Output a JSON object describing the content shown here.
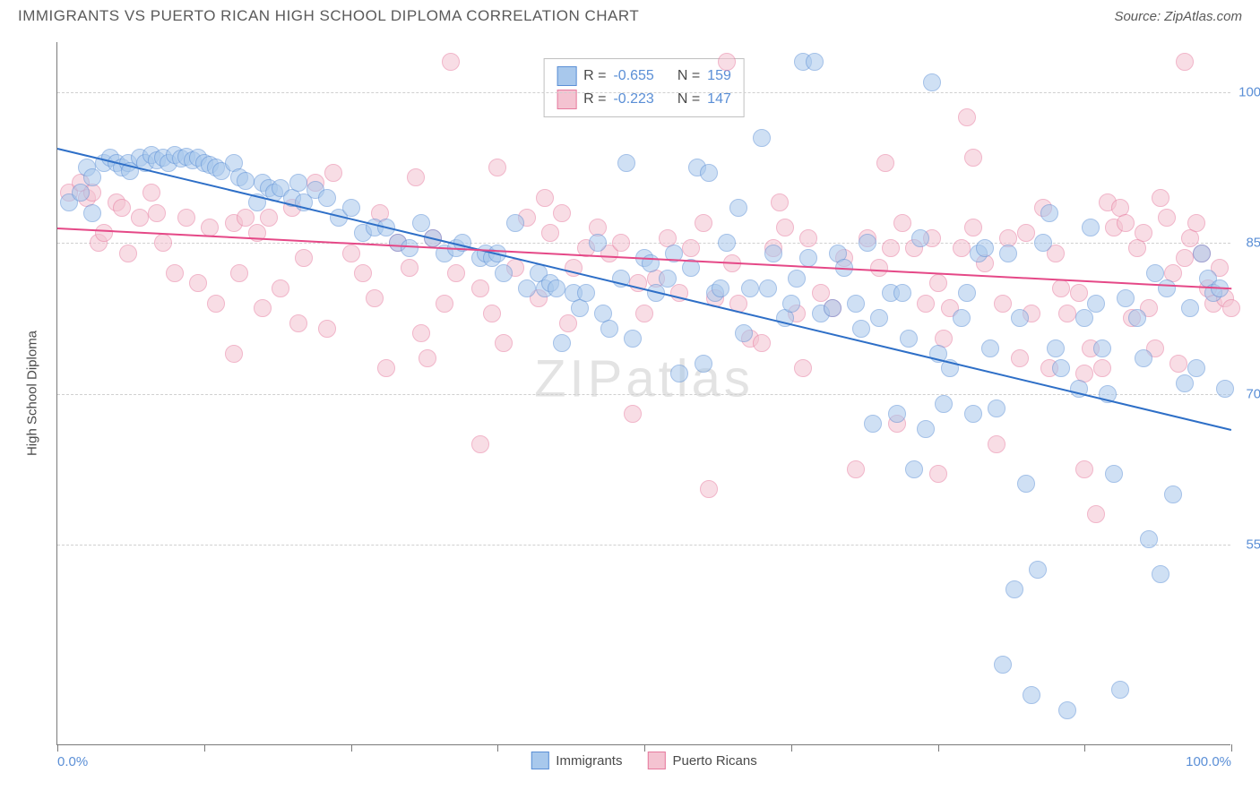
{
  "header": {
    "title": "IMMIGRANTS VS PUERTO RICAN HIGH SCHOOL DIPLOMA CORRELATION CHART",
    "source": "Source: ZipAtlas.com"
  },
  "watermark": "ZIPatlas",
  "chart": {
    "type": "scatter",
    "y_axis_label": "High School Diploma",
    "xlim": [
      0,
      100
    ],
    "ylim": [
      35,
      105
    ],
    "x_ticks": [
      0,
      12.5,
      25,
      37.5,
      50,
      62.5,
      75,
      87.5,
      100
    ],
    "x_tick_labels": {
      "0": "0.0%",
      "100": "100.0%"
    },
    "y_gridlines": [
      55,
      70,
      85,
      100
    ],
    "y_gridline_labels": {
      "55": "55.0%",
      "70": "70.0%",
      "85": "85.0%",
      "100": "100.0%"
    },
    "grid_color": "#d0d0d0",
    "background_color": "#ffffff",
    "axis_color": "#7a7a7a",
    "tick_label_color": "#5b8fd6",
    "marker_radius": 10,
    "marker_opacity": 0.55
  },
  "legend_stats": {
    "series1": {
      "R_label": "R =",
      "R": "-0.655",
      "N_label": "N =",
      "N": "159"
    },
    "series2": {
      "R_label": "R =",
      "R": "-0.223",
      "N_label": "N =",
      "N": "147"
    }
  },
  "series_legend": {
    "s1": "Immigrants",
    "s2": "Puerto Ricans"
  },
  "series": [
    {
      "name": "Immigrants",
      "fill": "#a8c8ec",
      "stroke": "#5b8fd6",
      "trend_color": "#2e6fc7",
      "trend_width": 2,
      "trend": {
        "x1": 0,
        "y1": 94.5,
        "x2": 100,
        "y2": 66.5
      },
      "points": [
        [
          1,
          89
        ],
        [
          2,
          90
        ],
        [
          2.5,
          92.5
        ],
        [
          3,
          91.5
        ],
        [
          3,
          88
        ],
        [
          4,
          93
        ],
        [
          4.5,
          93.5
        ],
        [
          5,
          93
        ],
        [
          5.5,
          92.5
        ],
        [
          6,
          93
        ],
        [
          6.2,
          92.2
        ],
        [
          7,
          93.5
        ],
        [
          7.5,
          93
        ],
        [
          8,
          93.8
        ],
        [
          8.5,
          93.2
        ],
        [
          9,
          93.5
        ],
        [
          9.5,
          93
        ],
        [
          10,
          93.8
        ],
        [
          10.5,
          93.4
        ],
        [
          11,
          93.6
        ],
        [
          11.5,
          93.2
        ],
        [
          12,
          93.5
        ],
        [
          12.5,
          93
        ],
        [
          13,
          92.8
        ],
        [
          13.5,
          92.5
        ],
        [
          14,
          92.2
        ],
        [
          15,
          93
        ],
        [
          15.5,
          91.5
        ],
        [
          16,
          91.2
        ],
        [
          17,
          89
        ],
        [
          17.5,
          91
        ],
        [
          18,
          90.5
        ],
        [
          18.5,
          90
        ],
        [
          19,
          90.5
        ],
        [
          20,
          89.5
        ],
        [
          20.5,
          91
        ],
        [
          21,
          89
        ],
        [
          22,
          90.3
        ],
        [
          23,
          89.5
        ],
        [
          24,
          87.5
        ],
        [
          25,
          88.5
        ],
        [
          26,
          86
        ],
        [
          27,
          86.5
        ],
        [
          28,
          86.5
        ],
        [
          29,
          85
        ],
        [
          30,
          84.5
        ],
        [
          31,
          87
        ],
        [
          32,
          85.5
        ],
        [
          33,
          84
        ],
        [
          34,
          84.5
        ],
        [
          34.5,
          85
        ],
        [
          36,
          83.5
        ],
        [
          36.5,
          84
        ],
        [
          37,
          83.5
        ],
        [
          37.5,
          84
        ],
        [
          38,
          82
        ],
        [
          39,
          87
        ],
        [
          40,
          80.5
        ],
        [
          41,
          82
        ],
        [
          41.5,
          80.5
        ],
        [
          42,
          81
        ],
        [
          42.5,
          80.5
        ],
        [
          43,
          75
        ],
        [
          44,
          80
        ],
        [
          44.5,
          78.5
        ],
        [
          45,
          80
        ],
        [
          46,
          85
        ],
        [
          46.5,
          78
        ],
        [
          47,
          76.5
        ],
        [
          48,
          81.5
        ],
        [
          48.5,
          93
        ],
        [
          49,
          75.5
        ],
        [
          50,
          83.5
        ],
        [
          50.5,
          83
        ],
        [
          51,
          80
        ],
        [
          52,
          81.5
        ],
        [
          52.5,
          84
        ],
        [
          53,
          72
        ],
        [
          54,
          82.5
        ],
        [
          54.5,
          92.5
        ],
        [
          55,
          73
        ],
        [
          55.5,
          92
        ],
        [
          56,
          80
        ],
        [
          56.5,
          80.5
        ],
        [
          57,
          85
        ],
        [
          58,
          88.5
        ],
        [
          58.5,
          76
        ],
        [
          59,
          80.5
        ],
        [
          60,
          95.5
        ],
        [
          60.5,
          80.5
        ],
        [
          61,
          84
        ],
        [
          62,
          77.5
        ],
        [
          62.5,
          79
        ],
        [
          63,
          81.5
        ],
        [
          63.5,
          103
        ],
        [
          64,
          83.5
        ],
        [
          64.5,
          103
        ],
        [
          65,
          78
        ],
        [
          66,
          78.5
        ],
        [
          66.5,
          84
        ],
        [
          67,
          82.5
        ],
        [
          68,
          79
        ],
        [
          68.5,
          76.5
        ],
        [
          69,
          85
        ],
        [
          69.5,
          67
        ],
        [
          70,
          77.5
        ],
        [
          71,
          80
        ],
        [
          71.5,
          68
        ],
        [
          72,
          80
        ],
        [
          72.5,
          75.5
        ],
        [
          73,
          62.5
        ],
        [
          73.5,
          85.5
        ],
        [
          74,
          66.5
        ],
        [
          74.5,
          101
        ],
        [
          75,
          74
        ],
        [
          75.5,
          69
        ],
        [
          76,
          72.5
        ],
        [
          77,
          77.5
        ],
        [
          77.5,
          80
        ],
        [
          78,
          68
        ],
        [
          78.5,
          84
        ],
        [
          79,
          84.5
        ],
        [
          79.5,
          74.5
        ],
        [
          80,
          68.5
        ],
        [
          80.5,
          43
        ],
        [
          81,
          84
        ],
        [
          81.5,
          50.5
        ],
        [
          82,
          77.5
        ],
        [
          82.5,
          61
        ],
        [
          83,
          40
        ],
        [
          83.5,
          52.5
        ],
        [
          84,
          85
        ],
        [
          84.5,
          88
        ],
        [
          85,
          74.5
        ],
        [
          85.5,
          72.5
        ],
        [
          86,
          38.5
        ],
        [
          87,
          70.5
        ],
        [
          87.5,
          77.5
        ],
        [
          88,
          86.5
        ],
        [
          88.5,
          79
        ],
        [
          89,
          74.5
        ],
        [
          89.5,
          70
        ],
        [
          90,
          62
        ],
        [
          90.5,
          40.5
        ],
        [
          91,
          79.5
        ],
        [
          92,
          77.5
        ],
        [
          92.5,
          73.5
        ],
        [
          93,
          55.5
        ],
        [
          93.5,
          82
        ],
        [
          94,
          52
        ],
        [
          94.5,
          80.5
        ],
        [
          95,
          60
        ],
        [
          96,
          71
        ],
        [
          96.5,
          78.5
        ],
        [
          97,
          72.5
        ],
        [
          97.5,
          84
        ],
        [
          98,
          81.5
        ],
        [
          98.5,
          80
        ],
        [
          99,
          80.5
        ],
        [
          99.5,
          70.5
        ]
      ]
    },
    {
      "name": "Puerto Ricans",
      "fill": "#f4c3d1",
      "stroke": "#e67a9e",
      "trend_color": "#e54887",
      "trend_width": 2,
      "trend": {
        "x1": 0,
        "y1": 86.5,
        "x2": 100,
        "y2": 80.5
      },
      "points": [
        [
          1,
          90
        ],
        [
          2,
          91
        ],
        [
          2.5,
          89.5
        ],
        [
          3,
          90
        ],
        [
          3.5,
          85
        ],
        [
          4,
          86
        ],
        [
          5,
          89
        ],
        [
          5.5,
          88.5
        ],
        [
          6,
          84
        ],
        [
          7,
          87.5
        ],
        [
          8,
          90
        ],
        [
          8.5,
          88
        ],
        [
          9,
          85
        ],
        [
          10,
          82
        ],
        [
          11,
          87.5
        ],
        [
          12,
          81
        ],
        [
          13,
          86.5
        ],
        [
          13.5,
          79
        ],
        [
          15,
          87
        ],
        [
          15.5,
          82
        ],
        [
          16,
          87.5
        ],
        [
          17,
          86
        ],
        [
          17.5,
          78.5
        ],
        [
          18,
          87.5
        ],
        [
          19,
          80.5
        ],
        [
          20,
          88.5
        ],
        [
          20.5,
          77
        ],
        [
          21,
          83.5
        ],
        [
          22,
          91
        ],
        [
          23,
          76.5
        ],
        [
          23.5,
          92
        ],
        [
          25,
          84
        ],
        [
          26,
          82
        ],
        [
          27,
          79.5
        ],
        [
          27.5,
          88
        ],
        [
          28,
          72.5
        ],
        [
          29,
          85
        ],
        [
          30,
          82.5
        ],
        [
          30.5,
          91.5
        ],
        [
          31,
          76
        ],
        [
          31.5,
          73.5
        ],
        [
          32,
          85.5
        ],
        [
          33,
          79
        ],
        [
          33.5,
          103
        ],
        [
          34,
          82
        ],
        [
          36,
          80.5
        ],
        [
          37,
          78
        ],
        [
          37.5,
          92.5
        ],
        [
          38,
          75
        ],
        [
          39,
          82.5
        ],
        [
          40,
          87.5
        ],
        [
          41,
          79.5
        ],
        [
          41.5,
          89.5
        ],
        [
          42,
          86
        ],
        [
          43,
          88
        ],
        [
          43.5,
          77
        ],
        [
          44,
          82.5
        ],
        [
          45,
          84.5
        ],
        [
          46,
          86.5
        ],
        [
          47,
          84
        ],
        [
          48,
          85
        ],
        [
          49,
          68
        ],
        [
          49.5,
          81
        ],
        [
          50,
          78
        ],
        [
          51,
          81.5
        ],
        [
          52,
          85.5
        ],
        [
          53,
          80
        ],
        [
          54,
          84.5
        ],
        [
          55,
          87
        ],
        [
          55.5,
          60.5
        ],
        [
          56,
          79.5
        ],
        [
          57,
          103
        ],
        [
          57.5,
          83
        ],
        [
          58,
          79
        ],
        [
          59,
          75.5
        ],
        [
          60,
          75
        ],
        [
          61,
          84.5
        ],
        [
          61.5,
          89
        ],
        [
          62,
          86.5
        ],
        [
          63,
          78
        ],
        [
          63.5,
          72.5
        ],
        [
          64,
          85.5
        ],
        [
          65,
          80
        ],
        [
          66,
          78.5
        ],
        [
          67,
          83.5
        ],
        [
          68,
          62.5
        ],
        [
          69,
          85.5
        ],
        [
          70,
          82.5
        ],
        [
          71,
          84.5
        ],
        [
          71.5,
          67
        ],
        [
          72,
          87
        ],
        [
          73,
          84.5
        ],
        [
          74,
          79
        ],
        [
          74.5,
          85.5
        ],
        [
          75,
          81
        ],
        [
          75.5,
          75.5
        ],
        [
          76,
          78.5
        ],
        [
          77,
          84.5
        ],
        [
          77.5,
          97.5
        ],
        [
          78,
          86.5
        ],
        [
          79,
          83
        ],
        [
          80,
          65
        ],
        [
          80.5,
          79
        ],
        [
          81,
          85.5
        ],
        [
          82,
          73.5
        ],
        [
          82.5,
          86
        ],
        [
          83,
          78
        ],
        [
          84,
          88.5
        ],
        [
          84.5,
          72.5
        ],
        [
          85,
          84
        ],
        [
          85.5,
          80.5
        ],
        [
          86,
          78
        ],
        [
          87,
          80
        ],
        [
          87.5,
          72
        ],
        [
          88,
          74.5
        ],
        [
          88.5,
          58
        ],
        [
          89,
          72.5
        ],
        [
          89.5,
          89
        ],
        [
          90,
          86.5
        ],
        [
          90.5,
          88.5
        ],
        [
          91,
          87
        ],
        [
          91.5,
          77.5
        ],
        [
          92,
          84.5
        ],
        [
          92.5,
          86
        ],
        [
          93,
          78.5
        ],
        [
          93.5,
          74.5
        ],
        [
          94,
          89.5
        ],
        [
          94.5,
          87.5
        ],
        [
          95,
          82
        ],
        [
          95.5,
          73
        ],
        [
          96,
          83.5
        ],
        [
          96.5,
          85.5
        ],
        [
          97,
          87
        ],
        [
          97.5,
          84
        ],
        [
          98,
          80.5
        ],
        [
          98.5,
          79
        ],
        [
          99,
          82.5
        ],
        [
          99.5,
          79.5
        ],
        [
          100,
          78.5
        ],
        [
          96,
          103
        ],
        [
          70.5,
          93
        ],
        [
          78,
          93.5
        ],
        [
          15,
          74
        ],
        [
          75,
          62
        ],
        [
          87.5,
          62.5
        ],
        [
          36,
          65
        ]
      ]
    }
  ]
}
